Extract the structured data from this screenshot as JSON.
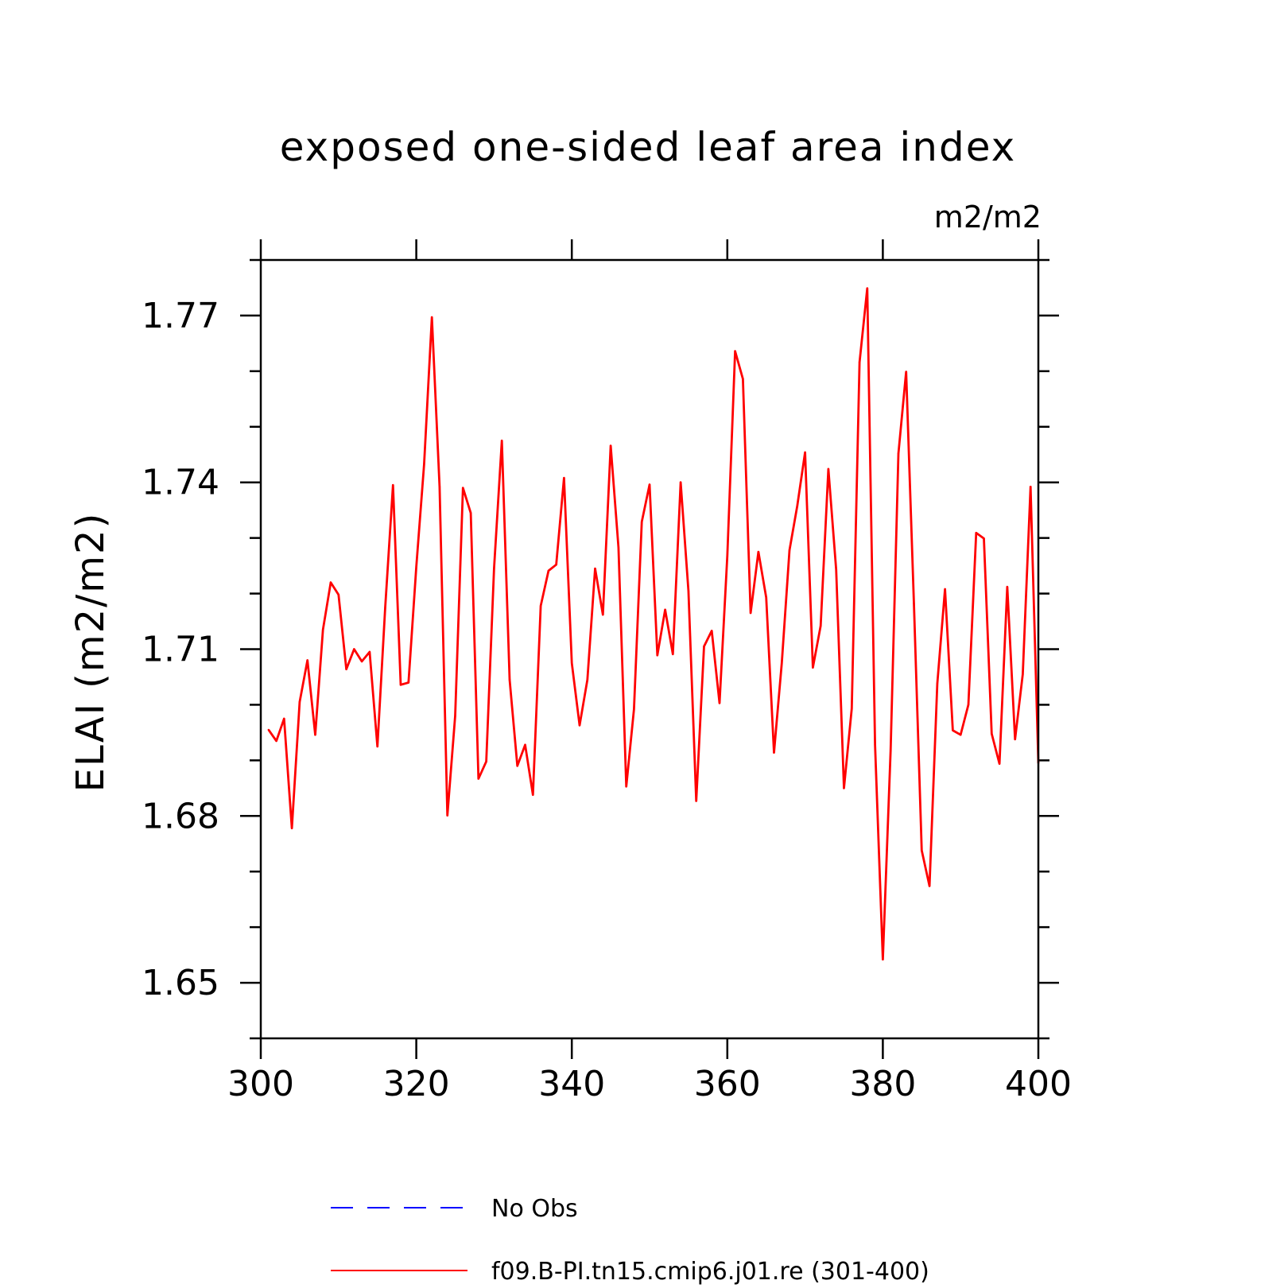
{
  "chart_data": {
    "type": "line",
    "title": "exposed one-sided leaf area index",
    "units_label": "m2/m2",
    "ylabel": "ELAI  (m2/m2)",
    "xlabel": "",
    "xlim": [
      300,
      400
    ],
    "ylim": [
      1.64,
      1.78
    ],
    "xticks": [
      300,
      320,
      340,
      360,
      380,
      400
    ],
    "xtick_labels": [
      "300",
      "320",
      "340",
      "360",
      "380",
      "400"
    ],
    "yticks": [
      1.65,
      1.68,
      1.71,
      1.74,
      1.77
    ],
    "ytick_labels": [
      "1.65",
      "1.68",
      "1.71",
      "1.74",
      "1.77"
    ],
    "grid": false,
    "legend_position": "bottom",
    "series": [
      {
        "name": "No Obs",
        "color": "#0000ff",
        "dash": "dashed",
        "x": [],
        "values": []
      },
      {
        "name": "f09.B-PI.tn15.cmip6.j01.re (301-400)",
        "color": "#ff0000",
        "dash": "solid",
        "x": [
          301,
          302,
          303,
          304,
          305,
          306,
          307,
          308,
          309,
          310,
          311,
          312,
          313,
          314,
          315,
          316,
          317,
          318,
          319,
          320,
          321,
          322,
          323,
          324,
          325,
          326,
          327,
          328,
          329,
          330,
          331,
          332,
          333,
          334,
          335,
          336,
          337,
          338,
          339,
          340,
          341,
          342,
          343,
          344,
          345,
          346,
          347,
          348,
          349,
          350,
          351,
          352,
          353,
          354,
          355,
          356,
          357,
          358,
          359,
          360,
          361,
          362,
          363,
          364,
          365,
          366,
          367,
          368,
          369,
          370,
          371,
          372,
          373,
          374,
          375,
          376,
          377,
          378,
          379,
          380,
          381,
          382,
          383,
          384,
          385,
          386,
          387,
          388,
          389,
          390,
          391,
          392,
          393,
          394,
          395,
          396,
          397,
          398,
          399,
          400
        ],
        "values": [
          1.6955,
          1.6935,
          1.6975,
          1.6778,
          1.7005,
          1.708,
          1.6946,
          1.7135,
          1.722,
          1.7198,
          1.7064,
          1.71,
          1.7078,
          1.7095,
          1.6925,
          1.7175,
          1.7395,
          1.7036,
          1.704,
          1.7248,
          1.7432,
          1.7697,
          1.7392,
          1.6801,
          1.698,
          1.739,
          1.7345,
          1.6867,
          1.6898,
          1.7245,
          1.7475,
          1.7045,
          1.689,
          1.6928,
          1.6838,
          1.7178,
          1.7241,
          1.7252,
          1.7408,
          1.7075,
          1.6963,
          1.7045,
          1.7245,
          1.7162,
          1.7466,
          1.7283,
          1.6853,
          1.6992,
          1.7329,
          1.7396,
          1.7089,
          1.7171,
          1.7091,
          1.74,
          1.7205,
          1.6827,
          1.7105,
          1.7133,
          1.7003,
          1.7268,
          1.7636,
          1.7586,
          1.7165,
          1.7275,
          1.7193,
          1.6914,
          1.7075,
          1.7278,
          1.7358,
          1.7454,
          1.7067,
          1.7142,
          1.7424,
          1.7243,
          1.685,
          1.6993,
          1.7616,
          1.7749,
          1.6928,
          1.6542,
          1.6918,
          1.7452,
          1.7599,
          1.7182,
          1.6738,
          1.6674,
          1.7038,
          1.7208,
          1.6954,
          1.6946,
          1.7,
          1.7309,
          1.7299,
          1.6948,
          1.6894,
          1.7212,
          1.6938,
          1.7055,
          1.7392,
          1.6895
        ]
      }
    ]
  }
}
